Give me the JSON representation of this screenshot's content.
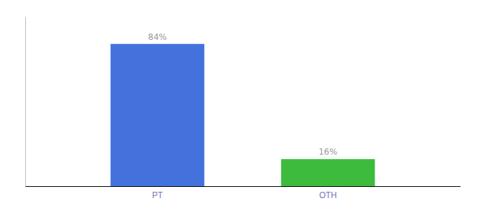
{
  "chart_data": {
    "type": "bar",
    "categories": [
      "PT",
      "OTH"
    ],
    "values": [
      84,
      16
    ],
    "value_labels": [
      "84%",
      "16%"
    ],
    "colors": [
      "#4472dd",
      "#3dbb3d"
    ],
    "ylim": [
      0,
      100
    ],
    "data_labels": true,
    "tick_labels": "x"
  }
}
